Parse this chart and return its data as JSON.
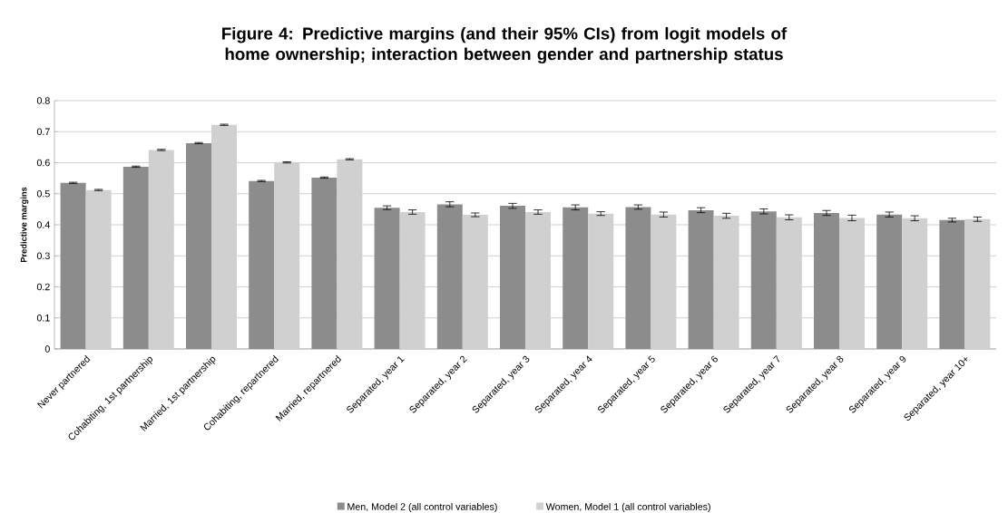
{
  "chart_data": {
    "type": "bar",
    "title": "Figure 4: Predictive margins (and their 95% CIs) from logit models of home ownership; interaction between gender and partnership status",
    "ylabel": "Predictive margins",
    "categories": [
      "Never partnered",
      "Cohabiting, 1st partnership",
      "Married, 1st partnership",
      "Cohabiting, repartnered",
      "Married, repartnered",
      "Separated, year 1",
      "Separated, year 2",
      "Separated, year 3",
      "Separated, year 4",
      "Separated, year 5",
      "Separated, year 6",
      "Separated, year 7",
      "Separated, year 8",
      "Separated, year 9",
      "Separated, year 10+"
    ],
    "series": [
      {
        "name": "Men, Model 2 (all control variables)",
        "color": "#8c8c8c",
        "values": [
          0.535,
          0.587,
          0.663,
          0.541,
          0.552,
          0.455,
          0.466,
          0.461,
          0.456,
          0.457,
          0.447,
          0.443,
          0.438,
          0.433,
          0.415
        ],
        "errors": [
          0.002,
          0.002,
          0.002,
          0.002,
          0.002,
          0.006,
          0.008,
          0.008,
          0.008,
          0.007,
          0.008,
          0.008,
          0.008,
          0.008,
          0.006
        ]
      },
      {
        "name": "Women, Model 1 (all control variables)",
        "color": "#d0d0d0",
        "values": [
          0.512,
          0.641,
          0.722,
          0.601,
          0.611,
          0.441,
          0.432,
          0.441,
          0.436,
          0.433,
          0.429,
          0.424,
          0.422,
          0.421,
          0.418
        ],
        "errors": [
          0.002,
          0.002,
          0.002,
          0.002,
          0.002,
          0.007,
          0.006,
          0.007,
          0.006,
          0.008,
          0.008,
          0.008,
          0.009,
          0.008,
          0.007
        ]
      }
    ],
    "ylim": [
      0,
      0.8
    ],
    "yticks": [
      0,
      0.1,
      0.2,
      0.3,
      0.4,
      0.5,
      0.6,
      0.7,
      0.8
    ],
    "grid": "y",
    "legend": "bottom"
  }
}
